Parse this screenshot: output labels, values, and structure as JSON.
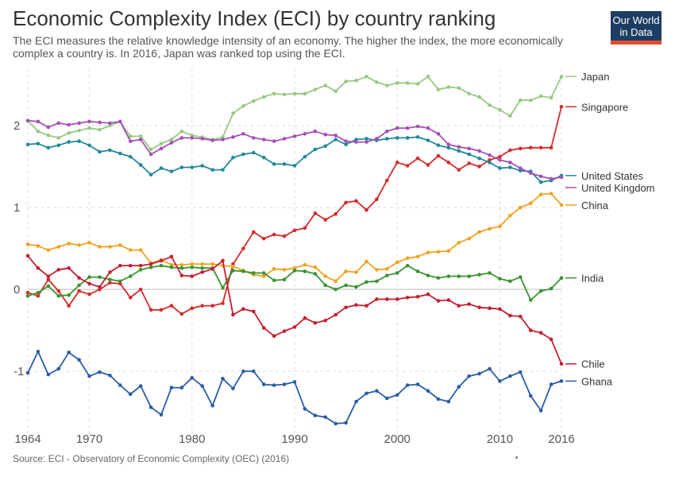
{
  "header": {
    "title": "Economic Complexity Index (ECI) by country ranking",
    "subtitle": "The ECI measures the relative knowledge intensity of an economy. The higher the index, the more economically complex a country is. In 2016, Japan was ranked top using the ECI."
  },
  "logo": {
    "line1": "Our World",
    "line2": "in Data",
    "colors": {
      "background": "#1d3d63",
      "accent": "#e34b2b"
    }
  },
  "footer": {
    "source": "Source: ECI - Observatory of Economic Complexity (OEC) (2016)"
  },
  "chart_data": {
    "type": "line",
    "title": "Economic Complexity Index (ECI) by country ranking",
    "xlabel": "",
    "ylabel": "",
    "xlim": [
      1964,
      2016
    ],
    "ylim": [
      -1.8,
      2.7
    ],
    "grid": true,
    "legend_placement": "right, at line ends",
    "x_ticks": [
      1964,
      1970,
      1980,
      1990,
      2000,
      2010,
      2016
    ],
    "y_ticks": [
      -1,
      0,
      1,
      2
    ],
    "y_tick_labels": [
      "-1",
      "0",
      "1",
      "2"
    ],
    "x": [
      1964,
      1965,
      1966,
      1967,
      1968,
      1969,
      1970,
      1971,
      1972,
      1973,
      1974,
      1975,
      1976,
      1977,
      1978,
      1979,
      1980,
      1981,
      1982,
      1983,
      1984,
      1985,
      1986,
      1987,
      1988,
      1989,
      1990,
      1991,
      1992,
      1993,
      1994,
      1995,
      1996,
      1997,
      1998,
      1999,
      2000,
      2001,
      2002,
      2003,
      2004,
      2005,
      2006,
      2007,
      2008,
      2009,
      2010,
      2011,
      2012,
      2013,
      2014,
      2015,
      2016
    ],
    "series": [
      {
        "name": "Japan",
        "color": "#97c981",
        "values": [
          2.06,
          1.93,
          1.88,
          1.85,
          1.91,
          1.94,
          1.97,
          1.95,
          2.0,
          2.05,
          1.87,
          1.87,
          1.71,
          1.78,
          1.83,
          1.93,
          1.88,
          1.86,
          1.83,
          1.86,
          2.15,
          2.24,
          2.3,
          2.35,
          2.39,
          2.38,
          2.39,
          2.39,
          2.44,
          2.49,
          2.42,
          2.54,
          2.55,
          2.6,
          2.53,
          2.49,
          2.52,
          2.52,
          2.51,
          2.6,
          2.44,
          2.47,
          2.46,
          2.39,
          2.35,
          2.25,
          2.19,
          2.12,
          2.31,
          2.31,
          2.36,
          2.34,
          2.6
        ]
      },
      {
        "name": "Singapore",
        "color": "#d62a2a",
        "values": [
          -0.04,
          -0.08,
          0.12,
          -0.02,
          -0.2,
          -0.02,
          -0.06,
          0.0,
          0.08,
          0.07,
          -0.1,
          0.0,
          -0.25,
          -0.25,
          -0.2,
          -0.3,
          -0.23,
          -0.2,
          -0.2,
          -0.17,
          0.31,
          0.5,
          0.7,
          0.62,
          0.67,
          0.65,
          0.72,
          0.75,
          0.93,
          0.85,
          0.92,
          1.06,
          1.08,
          0.97,
          1.1,
          1.33,
          1.55,
          1.51,
          1.6,
          1.52,
          1.63,
          1.55,
          1.46,
          1.54,
          1.5,
          1.58,
          1.62,
          1.7,
          1.72,
          1.73,
          1.73,
          1.73,
          2.23
        ]
      },
      {
        "name": "United States",
        "color": "#1f8a99",
        "values": [
          1.77,
          1.78,
          1.73,
          1.76,
          1.8,
          1.81,
          1.76,
          1.68,
          1.7,
          1.66,
          1.62,
          1.52,
          1.4,
          1.48,
          1.44,
          1.49,
          1.49,
          1.51,
          1.46,
          1.46,
          1.61,
          1.65,
          1.67,
          1.61,
          1.53,
          1.53,
          1.51,
          1.62,
          1.71,
          1.75,
          1.83,
          1.77,
          1.83,
          1.84,
          1.82,
          1.84,
          1.85,
          1.85,
          1.86,
          1.82,
          1.76,
          1.73,
          1.69,
          1.65,
          1.6,
          1.55,
          1.48,
          1.49,
          1.45,
          1.44,
          1.31,
          1.33,
          1.39
        ]
      },
      {
        "name": "United Kingdom",
        "color": "#a64fb5",
        "values": [
          2.06,
          2.05,
          1.98,
          2.03,
          2.01,
          2.03,
          2.05,
          2.04,
          2.03,
          2.05,
          1.81,
          1.83,
          1.65,
          1.72,
          1.79,
          1.85,
          1.85,
          1.84,
          1.82,
          1.83,
          1.86,
          1.9,
          1.85,
          1.83,
          1.81,
          1.84,
          1.87,
          1.9,
          1.93,
          1.89,
          1.88,
          1.81,
          1.8,
          1.8,
          1.84,
          1.93,
          1.97,
          1.97,
          1.99,
          1.97,
          1.9,
          1.77,
          1.74,
          1.72,
          1.69,
          1.64,
          1.58,
          1.55,
          1.48,
          1.42,
          1.38,
          1.35,
          1.37
        ]
      },
      {
        "name": "China",
        "color": "#f0a21f",
        "values": [
          0.55,
          0.53,
          0.48,
          0.52,
          0.56,
          0.54,
          0.57,
          0.52,
          0.52,
          0.54,
          0.48,
          0.48,
          0.32,
          0.36,
          0.3,
          0.3,
          0.31,
          0.31,
          0.31,
          0.29,
          0.28,
          0.23,
          0.18,
          0.16,
          0.25,
          0.24,
          0.26,
          0.3,
          0.27,
          0.16,
          0.1,
          0.22,
          0.21,
          0.34,
          0.24,
          0.25,
          0.33,
          0.38,
          0.4,
          0.45,
          0.46,
          0.47,
          0.57,
          0.62,
          0.7,
          0.74,
          0.77,
          0.9,
          1.0,
          1.05,
          1.16,
          1.17,
          1.03
        ]
      },
      {
        "name": "India",
        "color": "#3a9432",
        "values": [
          -0.08,
          -0.04,
          0.04,
          -0.08,
          -0.07,
          0.05,
          0.15,
          0.15,
          0.12,
          0.1,
          0.16,
          0.24,
          0.27,
          0.29,
          0.27,
          0.26,
          0.27,
          0.26,
          0.26,
          0.02,
          0.23,
          0.22,
          0.2,
          0.2,
          0.11,
          0.12,
          0.23,
          0.22,
          0.19,
          0.05,
          0.0,
          0.05,
          0.03,
          0.09,
          0.1,
          0.17,
          0.2,
          0.29,
          0.22,
          0.17,
          0.14,
          0.16,
          0.16,
          0.16,
          0.18,
          0.2,
          0.13,
          0.1,
          0.15,
          -0.13,
          -0.02,
          0.01,
          0.14
        ]
      },
      {
        "name": "Chile",
        "color": "#c21f2f",
        "values": [
          0.41,
          0.26,
          0.16,
          0.24,
          0.26,
          0.14,
          0.07,
          0.03,
          0.21,
          0.29,
          0.29,
          0.29,
          0.31,
          0.35,
          0.4,
          0.17,
          0.16,
          0.21,
          0.25,
          0.35,
          -0.31,
          -0.24,
          -0.27,
          -0.47,
          -0.57,
          -0.51,
          -0.46,
          -0.35,
          -0.41,
          -0.38,
          -0.31,
          -0.22,
          -0.19,
          -0.2,
          -0.12,
          -0.12,
          -0.12,
          -0.1,
          -0.09,
          -0.06,
          -0.14,
          -0.13,
          -0.2,
          -0.18,
          -0.22,
          -0.23,
          -0.24,
          -0.32,
          -0.33,
          -0.5,
          -0.53,
          -0.61,
          -0.91
        ]
      },
      {
        "name": "Ghana",
        "color": "#2a5ca8",
        "values": [
          -1.02,
          -0.76,
          -1.04,
          -0.97,
          -0.77,
          -0.86,
          -1.06,
          -1.01,
          -1.05,
          -1.17,
          -1.28,
          -1.18,
          -1.44,
          -1.53,
          -1.2,
          -1.2,
          -1.08,
          -1.18,
          -1.42,
          -1.09,
          -1.21,
          -1.0,
          -1.0,
          -1.16,
          -1.17,
          -1.16,
          -1.13,
          -1.46,
          -1.54,
          -1.56,
          -1.64,
          -1.63,
          -1.37,
          -1.27,
          -1.24,
          -1.33,
          -1.29,
          -1.17,
          -1.16,
          -1.24,
          -1.34,
          -1.37,
          -1.19,
          -1.06,
          -1.03,
          -0.97,
          -1.12,
          -1.06,
          -1.01,
          -1.3,
          -1.48,
          -1.16,
          -1.12
        ]
      }
    ],
    "legend_labels": {
      "Japan": "Japan",
      "Singapore": "Singapore",
      "United States": "United States",
      "United Kingdom": "United Kingdom",
      "China": "China",
      "India": "India",
      "Chile": "Chile",
      "Ghana": "Ghana"
    }
  }
}
